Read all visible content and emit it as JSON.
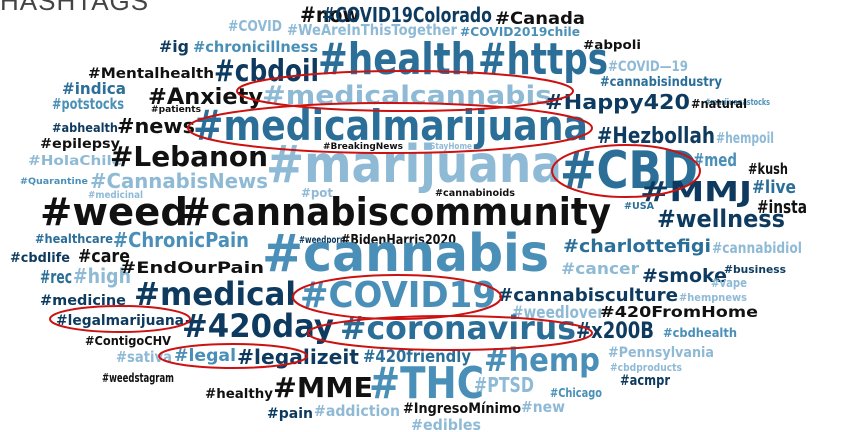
{
  "title": "HASHTAGS",
  "colors": {
    "black": "#111111",
    "navy": "#0d3a5e",
    "blue": "#2b6f99",
    "mid": "#4a8fb8",
    "light": "#8fbad6",
    "highlight": "#cc1111"
  },
  "words": [
    {
      "text": "#now",
      "color": "black"
    },
    {
      "text": "#COVID19Colorado",
      "color": "navy"
    },
    {
      "text": "#Canada",
      "color": "black"
    },
    {
      "text": "#COVID",
      "color": "light"
    },
    {
      "text": "#WeAreInThisTogether",
      "color": "light"
    },
    {
      "text": "#COVID2019chile",
      "color": "mid"
    },
    {
      "text": "#ig",
      "color": "navy"
    },
    {
      "text": "#chronicillness",
      "color": "mid"
    },
    {
      "text": "#health",
      "color": "blue"
    },
    {
      "text": "#https",
      "color": "blue"
    },
    {
      "text": "#abpoli",
      "color": "black"
    },
    {
      "text": "#Mentalhealth",
      "color": "black"
    },
    {
      "text": "#cbdoil",
      "color": "navy"
    },
    {
      "text": "#COVID—19",
      "color": "light"
    },
    {
      "text": "#cannabisindustry",
      "color": "blue"
    },
    {
      "text": "#indica",
      "color": "blue"
    },
    {
      "text": "#Anxiety",
      "color": "black"
    },
    {
      "text": "#medicalcannabis",
      "color": "light"
    },
    {
      "text": "#marijuanastocks",
      "color": "mid"
    },
    {
      "text": "#potstocks",
      "color": "mid"
    },
    {
      "text": "#Happy420",
      "color": "navy"
    },
    {
      "text": "#natural",
      "color": "black"
    },
    {
      "text": "#patients",
      "color": "black"
    },
    {
      "text": "#abhealth",
      "color": "navy"
    },
    {
      "text": "#news",
      "color": "black"
    },
    {
      "text": "#medicalmarijuana",
      "color": "blue"
    },
    {
      "text": "#Hezbollah",
      "color": "navy"
    },
    {
      "text": "#hempoil",
      "color": "light"
    },
    {
      "text": "#epilepsy",
      "color": "black"
    },
    {
      "text": "#BreakingNews",
      "color": "black"
    },
    {
      "text": "#StayHome",
      "color": "light"
    },
    {
      "text": "#HolaChile",
      "color": "light"
    },
    {
      "text": "#Lebanon",
      "color": "black"
    },
    {
      "text": "#marijuana",
      "color": "light"
    },
    {
      "text": "#CBD",
      "color": "blue"
    },
    {
      "text": "#med",
      "color": "mid"
    },
    {
      "text": "#kush",
      "color": "black"
    },
    {
      "text": "#Quarantine",
      "color": "mid"
    },
    {
      "text": "#CannabisNews",
      "color": "light"
    },
    {
      "text": "#medicinal",
      "color": "light"
    },
    {
      "text": "#pot",
      "color": "light"
    },
    {
      "text": "#cannabinoids",
      "color": "black"
    },
    {
      "text": "#MMJ",
      "color": "navy"
    },
    {
      "text": "#live",
      "color": "blue"
    },
    {
      "text": "#insta",
      "color": "black"
    },
    {
      "text": "#weed",
      "color": "black"
    },
    {
      "text": "#cannabiscommunity",
      "color": "black"
    },
    {
      "text": "#USA",
      "color": "blue"
    },
    {
      "text": "#wellness",
      "color": "navy"
    },
    {
      "text": "#healthcare",
      "color": "blue"
    },
    {
      "text": "#ChronicPain",
      "color": "mid"
    },
    {
      "text": "#weedporn",
      "color": "navy"
    },
    {
      "text": "#BidenHarris2020",
      "color": "black"
    },
    {
      "text": "#cbdlife",
      "color": "navy"
    },
    {
      "text": "#care",
      "color": "black"
    },
    {
      "text": "#cannabis",
      "color": "mid"
    },
    {
      "text": "#charlottefigi",
      "color": "blue"
    },
    {
      "text": "#cannabidiol",
      "color": "light"
    },
    {
      "text": "#rec",
      "color": "blue"
    },
    {
      "text": "#high",
      "color": "light"
    },
    {
      "text": "#EndOurPain",
      "color": "black"
    },
    {
      "text": "#cancer",
      "color": "light"
    },
    {
      "text": "#smoke",
      "color": "navy"
    },
    {
      "text": "#business",
      "color": "navy"
    },
    {
      "text": "#vape",
      "color": "light"
    },
    {
      "text": "#medicine",
      "color": "navy"
    },
    {
      "text": "#medical",
      "color": "navy"
    },
    {
      "text": "#COVID19",
      "color": "mid"
    },
    {
      "text": "#cannabisculture",
      "color": "navy"
    },
    {
      "text": "#hempnews",
      "color": "light"
    },
    {
      "text": "#legalmarijuana",
      "color": "navy"
    },
    {
      "text": "#weedlover",
      "color": "light"
    },
    {
      "text": "#420FromHome",
      "color": "black"
    },
    {
      "text": "#420day",
      "color": "navy"
    },
    {
      "text": "#coronavirus",
      "color": "blue"
    },
    {
      "text": "#x200B",
      "color": "navy"
    },
    {
      "text": "#cbdhealth",
      "color": "mid"
    },
    {
      "text": "#ContigoCHV",
      "color": "black"
    },
    {
      "text": "#Pennsylvania",
      "color": "light"
    },
    {
      "text": "#sativa",
      "color": "light"
    },
    {
      "text": "#legal",
      "color": "mid"
    },
    {
      "text": "#legalizeit",
      "color": "navy"
    },
    {
      "text": "#420friendly",
      "color": "blue"
    },
    {
      "text": "#hemp",
      "color": "mid"
    },
    {
      "text": "#cbdproducts",
      "color": "light"
    },
    {
      "text": "#weedstagram",
      "color": "black"
    },
    {
      "text": "#healthy",
      "color": "black"
    },
    {
      "text": "#MME",
      "color": "black"
    },
    {
      "text": "#THC",
      "color": "mid"
    },
    {
      "text": "#PTSD",
      "color": "light"
    },
    {
      "text": "#Chicago",
      "color": "mid"
    },
    {
      "text": "#acmpr",
      "color": "navy"
    },
    {
      "text": "#pain",
      "color": "navy"
    },
    {
      "text": "#addiction",
      "color": "light"
    },
    {
      "text": "#IngresoMínimo",
      "color": "black"
    },
    {
      "text": "#new",
      "color": "light"
    },
    {
      "text": "#edibles",
      "color": "light"
    }
  ]
}
